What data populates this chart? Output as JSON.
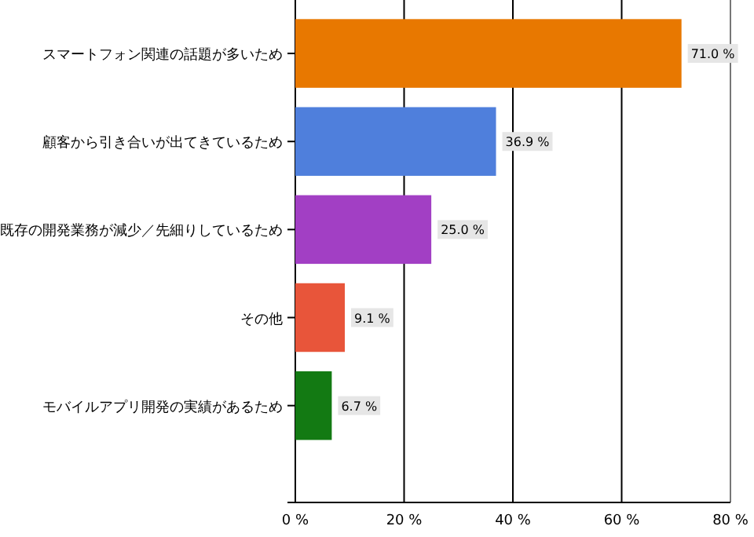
{
  "chart_data": {
    "type": "bar",
    "orientation": "horizontal",
    "categories": [
      "スマートフォン関連の話題が多いため",
      "顧客から引き合いが出てきているため",
      "既存の開発業務が減少／先細りしているため",
      "その他",
      "モバイルアプリ開発の実績があるため"
    ],
    "values": [
      71.0,
      36.9,
      25.0,
      9.1,
      6.7
    ],
    "colors": [
      "#e87800",
      "#4f7fdc",
      "#a23fc4",
      "#e8553a",
      "#137a13"
    ],
    "value_labels": [
      "71.0 %",
      "36.9 %",
      "25.0 %",
      "9.1 %",
      "6.7 %"
    ],
    "xlim": [
      0,
      80
    ],
    "xticks": [
      {
        "value": 0,
        "label": "0 %"
      },
      {
        "value": 20,
        "label": "20 %"
      },
      {
        "value": 40,
        "label": "40 %"
      },
      {
        "value": 60,
        "label": "60 %"
      },
      {
        "value": 80,
        "label": "80 %"
      }
    ],
    "grid": "x"
  }
}
